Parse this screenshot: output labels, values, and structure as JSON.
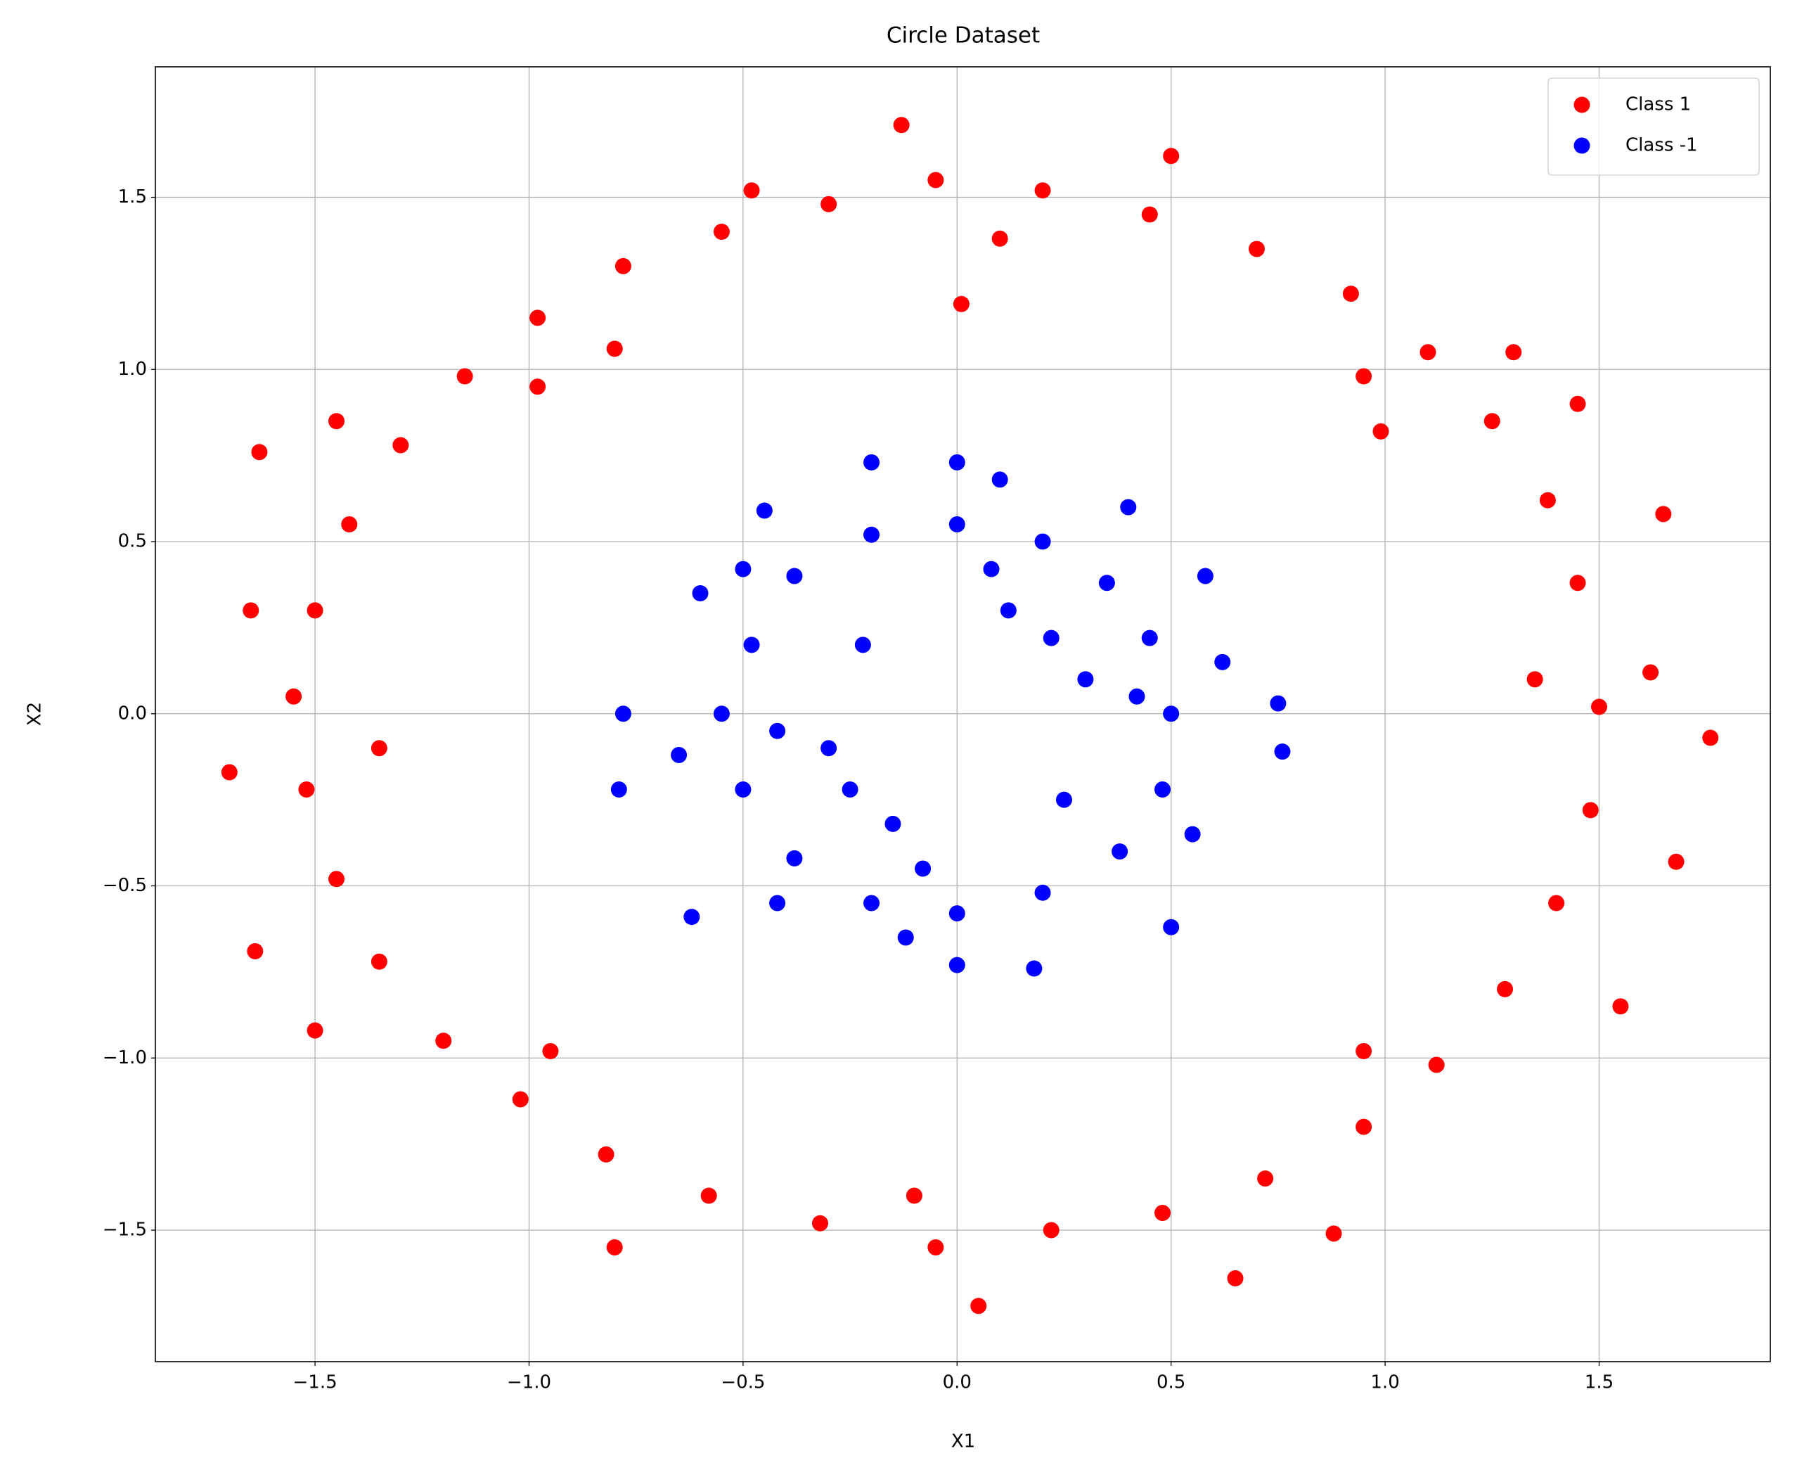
{
  "chart_data": {
    "type": "scatter",
    "title": "Circle Dataset",
    "x_label": "X1",
    "y_label": "X2",
    "xlim": [
      -1.873,
      1.9
    ],
    "ylim": [
      -1.882,
      1.879
    ],
    "xticks": [
      {
        "value": -1.5,
        "label": "−1.5"
      },
      {
        "value": -1.0,
        "label": "−1.0"
      },
      {
        "value": -0.5,
        "label": "−0.5"
      },
      {
        "value": 0.0,
        "label": "0.0"
      },
      0.5,
      {
        "value": 1.0,
        "label": "1.0"
      },
      1.5
    ],
    "yticks": [
      {
        "value": -1.5,
        "label": "−1.5"
      },
      {
        "value": -1.0,
        "label": "−1.0"
      },
      {
        "value": -0.5,
        "label": "−0.5"
      },
      {
        "value": 0.0,
        "label": "0.0"
      },
      0.5,
      {
        "value": 1.0,
        "label": "1.0"
      },
      1.5
    ],
    "grid": true,
    "legend_position": "upper-right",
    "series": [
      {
        "name": "Class 1",
        "color": "#ff0000",
        "x": [
          1.5,
          1.45,
          1.38,
          1.25,
          1.1,
          0.92,
          0.7,
          0.45,
          0.2,
          -0.05,
          -0.3,
          -0.55,
          -0.78,
          -0.98,
          -1.15,
          -1.3,
          -1.42,
          -1.5,
          -1.55,
          -1.52,
          -1.45,
          -1.35,
          -1.2,
          -1.02,
          -0.82,
          -0.58,
          -0.32,
          -0.05,
          0.22,
          0.48,
          0.72,
          0.95,
          1.12,
          1.28,
          1.4,
          1.48,
          1.76,
          0.01,
          -0.13,
          0.05,
          -1.7,
          1.65,
          -1.63,
          -1.64,
          1.68,
          0.88,
          -0.8,
          0.99,
          -0.8,
          1.45,
          -1.45,
          1.55,
          -1.5,
          0.65,
          0.5,
          -0.48,
          1.62,
          -1.65,
          1.3,
          1.35,
          -1.35,
          0.1,
          -0.1,
          0.95,
          -0.95,
          0.95,
          -0.98
        ],
        "values": [
          0.02,
          0.38,
          0.62,
          0.85,
          1.05,
          1.22,
          1.35,
          1.45,
          1.52,
          1.55,
          1.48,
          1.4,
          1.3,
          1.15,
          0.98,
          0.78,
          0.55,
          0.3,
          0.05,
          -0.22,
          -0.48,
          -0.72,
          -0.95,
          -1.12,
          -1.28,
          -1.4,
          -1.48,
          -1.55,
          -1.5,
          -1.45,
          -1.35,
          -1.2,
          -1.02,
          -0.8,
          -0.55,
          -0.28,
          -0.07,
          1.19,
          1.71,
          -1.72,
          -0.17,
          0.58,
          0.76,
          -0.69,
          -0.43,
          -1.51,
          -1.55,
          0.82,
          1.06,
          0.9,
          0.85,
          -0.85,
          -0.92,
          -1.64,
          1.62,
          1.52,
          0.12,
          0.3,
          1.05,
          0.1,
          -0.1,
          1.38,
          -1.4,
          0.98,
          -0.98,
          -0.98,
          0.95
        ]
      },
      {
        "name": "Class -1",
        "color": "#0000ff",
        "x": [
          0.5,
          0.45,
          0.35,
          0.2,
          0.0,
          -0.2,
          -0.38,
          -0.48,
          -0.55,
          -0.5,
          -0.38,
          -0.2,
          0.0,
          0.2,
          0.38,
          0.48,
          0.3,
          -0.3,
          0.12,
          -0.15,
          0.62,
          -0.65,
          0.1,
          -0.12,
          0.75,
          0.76,
          -0.79,
          -0.78,
          0.0,
          0.0,
          0.18,
          -0.2,
          -0.45,
          0.4,
          -0.62,
          0.5,
          -0.5,
          0.58,
          -0.6,
          0.55,
          -0.42,
          0.22,
          -0.22,
          0.25,
          -0.25,
          0.08,
          -0.08,
          0.42,
          -0.42
        ],
        "values": [
          0.0,
          0.22,
          0.38,
          0.5,
          0.55,
          0.52,
          0.4,
          0.2,
          0.0,
          -0.22,
          -0.42,
          -0.55,
          -0.58,
          -0.52,
          -0.4,
          -0.22,
          0.1,
          -0.1,
          0.3,
          -0.32,
          0.15,
          -0.12,
          0.68,
          -0.65,
          0.03,
          -0.11,
          -0.22,
          0.0,
          0.73,
          -0.73,
          -0.74,
          0.73,
          0.59,
          0.6,
          -0.59,
          -0.62,
          0.42,
          0.4,
          0.35,
          -0.35,
          -0.55,
          0.22,
          0.2,
          -0.25,
          -0.22,
          0.42,
          -0.45,
          0.05,
          -0.05
        ]
      }
    ]
  }
}
